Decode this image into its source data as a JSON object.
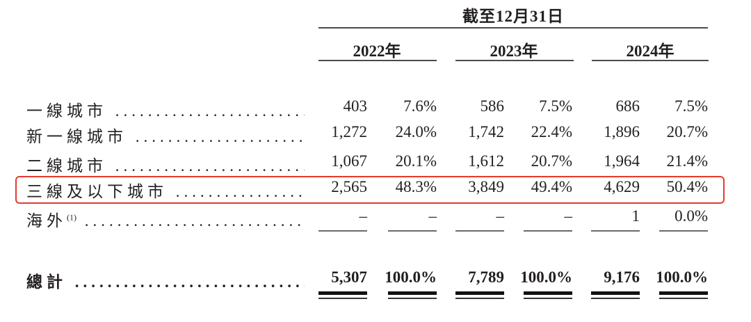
{
  "header": {
    "title": "截至12月31日",
    "years": [
      "2022年",
      "2023年",
      "2024年"
    ]
  },
  "rows": [
    {
      "label": "一線城市",
      "values": [
        "403",
        "7.6%",
        "586",
        "7.5%",
        "686",
        "7.5%"
      ]
    },
    {
      "label": "新一線城市",
      "values": [
        "1,272",
        "24.0%",
        "1,742",
        "22.4%",
        "1,896",
        "20.7%"
      ]
    },
    {
      "label": "二線城市",
      "values": [
        "1,067",
        "20.1%",
        "1,612",
        "20.7%",
        "1,964",
        "21.4%"
      ]
    },
    {
      "label": "三線及以下城市",
      "values": [
        "2,565",
        "48.3%",
        "3,849",
        "49.4%",
        "4,629",
        "50.4%"
      ],
      "highlighted": true
    },
    {
      "label": "海外",
      "footnote": "(1)",
      "values": [
        "–",
        "–",
        "–",
        "–",
        "1",
        "0.0%"
      ]
    }
  ],
  "total": {
    "label": "總計",
    "values": [
      "5,307",
      "100.0%",
      "7,789",
      "100.0%",
      "9,176",
      "100.0%"
    ]
  },
  "highlight_color": "#e53a2f"
}
